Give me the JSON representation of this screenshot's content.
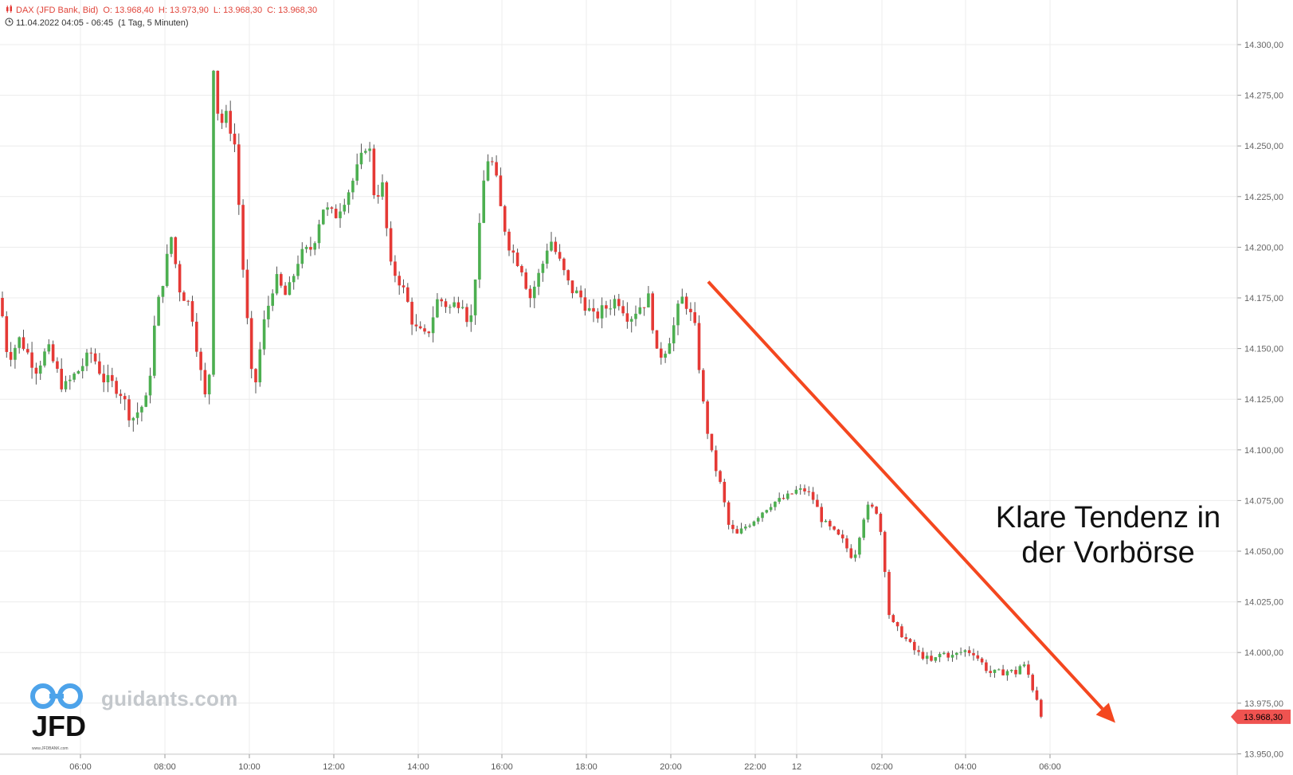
{
  "header": {
    "instrument": "DAX (JFD Bank, Bid)",
    "open": "O: 13.968,40",
    "high": "H: 13.973,90",
    "low": "L: 13.968,30",
    "close": "C: 13.968,30",
    "date_range": "11.04.2022 04:05 - 06:45",
    "interval": "(1 Tag, 5 Minuten)"
  },
  "watermark": {
    "site": "guidants.com",
    "logo_text": "JFD",
    "logo_small": "www.JFDBANK.com"
  },
  "annotation": {
    "line1": "Klare Tendenz in",
    "line2": "der Vorbörse"
  },
  "colors": {
    "up": "#4caf50",
    "down": "#e53935",
    "arrow": "#f4471f",
    "price_label": "#ef5350",
    "grid": "#ececec"
  },
  "icons": {
    "header_icon": "candlestick-icon",
    "time_icon": "clock-icon"
  },
  "chart_data": {
    "type": "candlestick",
    "symbol": "DAX",
    "ylim": [
      13950,
      14305
    ],
    "y_ticks": [
      13950,
      13975,
      14000,
      14025,
      14050,
      14075,
      14100,
      14125,
      14150,
      14175,
      14200,
      14225,
      14250,
      14275,
      14300
    ],
    "y_tick_labels": [
      "13.950,00",
      "13.975,00",
      "14.000,00",
      "14.025,00",
      "14.050,00",
      "14.075,00",
      "14.100,00",
      "14.125,00",
      "14.150,00",
      "14.175,00",
      "14.200,00",
      "14.225,00",
      "14.250,00",
      "14.275,00",
      "14.300,00"
    ],
    "x_tick_labels": [
      "06:00",
      "08:00",
      "10:00",
      "12:00",
      "14:00",
      "16:00",
      "18:00",
      "20:00",
      "22:00",
      "12",
      "02:00",
      "04:00",
      "06:00"
    ],
    "last_price": 13968.3,
    "last_price_label": "13.968,30",
    "trend_arrow": {
      "from_price": 14183,
      "to_price": 13970,
      "from_label": "20:50",
      "to_label": "07:30"
    },
    "waypoints": [
      [
        0,
        14175
      ],
      [
        10,
        14145
      ],
      [
        25,
        14155
      ],
      [
        45,
        14140
      ],
      [
        60,
        14150
      ],
      [
        80,
        14130
      ],
      [
        100,
        14140
      ],
      [
        115,
        14148
      ],
      [
        130,
        14135
      ],
      [
        150,
        14130
      ],
      [
        165,
        14115
      ],
      [
        185,
        14125
      ],
      [
        195,
        14165
      ],
      [
        205,
        14185
      ],
      [
        215,
        14205
      ],
      [
        225,
        14180
      ],
      [
        240,
        14170
      ],
      [
        255,
        14130
      ],
      [
        262,
        14118
      ],
      [
        268,
        14290
      ],
      [
        275,
        14260
      ],
      [
        285,
        14265
      ],
      [
        295,
        14250
      ],
      [
        305,
        14190
      ],
      [
        318,
        14125
      ],
      [
        330,
        14160
      ],
      [
        345,
        14185
      ],
      [
        360,
        14175
      ],
      [
        375,
        14195
      ],
      [
        392,
        14200
      ],
      [
        405,
        14220
      ],
      [
        420,
        14215
      ],
      [
        440,
        14230
      ],
      [
        455,
        14245
      ],
      [
        462,
        14255
      ],
      [
        470,
        14225
      ],
      [
        480,
        14230
      ],
      [
        490,
        14190
      ],
      [
        500,
        14185
      ],
      [
        510,
        14175
      ],
      [
        520,
        14160
      ],
      [
        535,
        14155
      ],
      [
        550,
        14175
      ],
      [
        565,
        14170
      ],
      [
        580,
        14175
      ],
      [
        590,
        14160
      ],
      [
        600,
        14200
      ],
      [
        610,
        14245
      ],
      [
        620,
        14240
      ],
      [
        630,
        14215
      ],
      [
        640,
        14200
      ],
      [
        655,
        14190
      ],
      [
        665,
        14175
      ],
      [
        680,
        14190
      ],
      [
        690,
        14205
      ],
      [
        700,
        14195
      ],
      [
        715,
        14180
      ],
      [
        730,
        14175
      ],
      [
        745,
        14165
      ],
      [
        760,
        14170
      ],
      [
        775,
        14175
      ],
      [
        790,
        14165
      ],
      [
        800,
        14170
      ],
      [
        815,
        14175
      ],
      [
        825,
        14145
      ],
      [
        835,
        14150
      ],
      [
        845,
        14160
      ],
      [
        855,
        14175
      ],
      [
        862,
        14172
      ],
      [
        872,
        14160
      ],
      [
        878,
        14140
      ],
      [
        885,
        14115
      ],
      [
        895,
        14095
      ],
      [
        905,
        14082
      ],
      [
        915,
        14062
      ],
      [
        925,
        14058
      ],
      [
        935,
        14062
      ],
      [
        945,
        14065
      ],
      [
        958,
        14070
      ],
      [
        970,
        14074
      ],
      [
        985,
        14076
      ],
      [
        1000,
        14080
      ],
      [
        1012,
        14080
      ],
      [
        1022,
        14075
      ],
      [
        1032,
        14065
      ],
      [
        1045,
        14060
      ],
      [
        1058,
        14055
      ],
      [
        1068,
        14048
      ],
      [
        1075,
        14050
      ],
      [
        1082,
        14065
      ],
      [
        1090,
        14072
      ],
      [
        1100,
        14070
      ],
      [
        1108,
        14055
      ],
      [
        1115,
        14020
      ],
      [
        1122,
        14013
      ],
      [
        1130,
        14010
      ],
      [
        1140,
        14005
      ],
      [
        1150,
        14000
      ],
      [
        1160,
        13998
      ],
      [
        1170,
        13995
      ],
      [
        1182,
        14000
      ],
      [
        1195,
        13998
      ],
      [
        1210,
        14001
      ],
      [
        1222,
        14000
      ],
      [
        1232,
        13995
      ],
      [
        1242,
        13990
      ],
      [
        1255,
        13990
      ],
      [
        1265,
        13991
      ],
      [
        1275,
        13990
      ],
      [
        1283,
        13995
      ],
      [
        1290,
        13990
      ],
      [
        1298,
        13980
      ],
      [
        1305,
        13975
      ],
      [
        1310,
        13968
      ]
    ]
  }
}
